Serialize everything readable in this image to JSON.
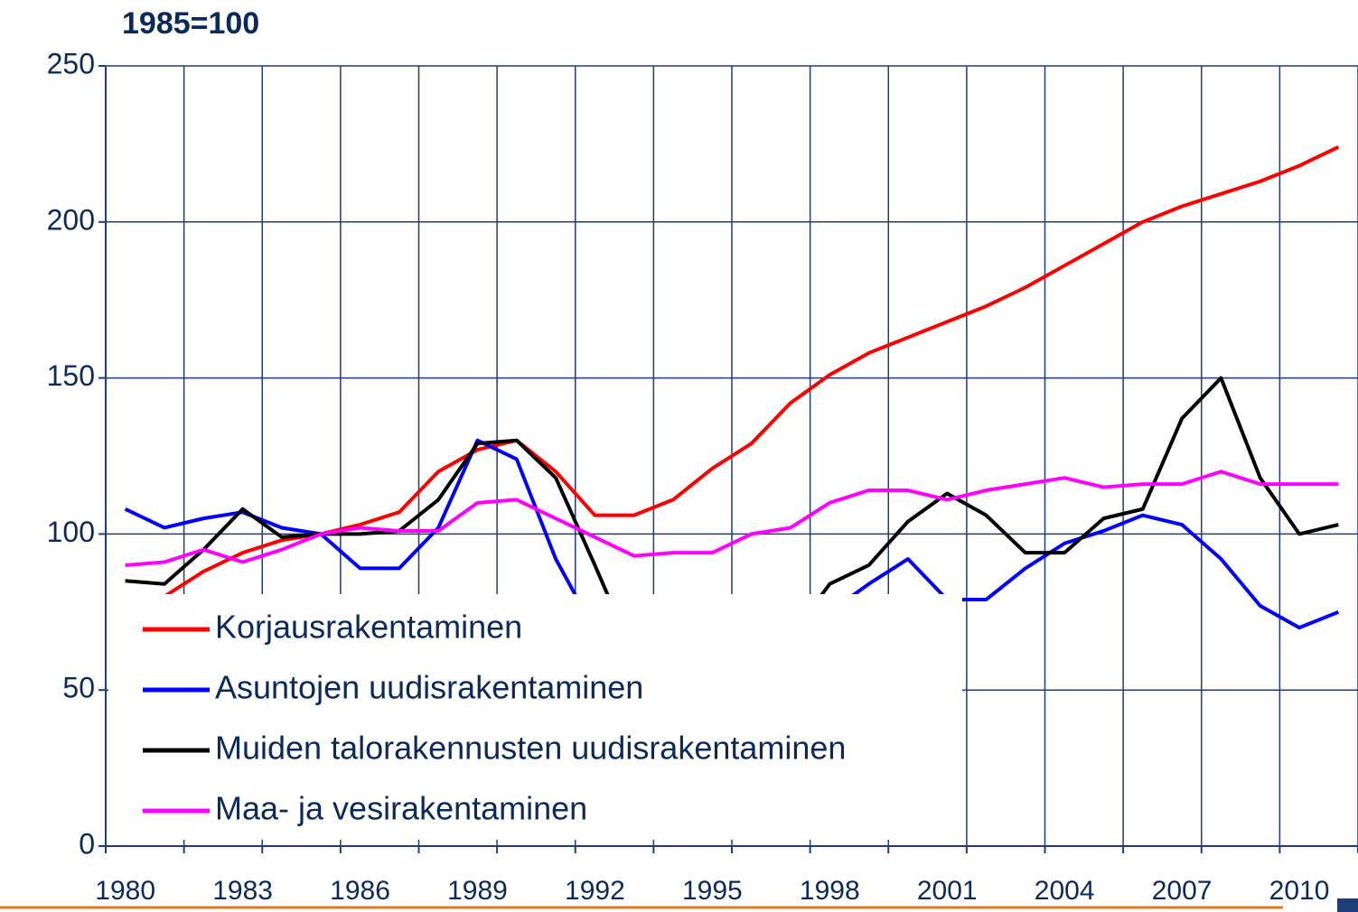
{
  "chart_data": {
    "type": "line",
    "title": "1985=100",
    "categories": [
      "1980",
      null,
      null,
      "1983",
      null,
      null,
      "1986",
      null,
      null,
      "1989",
      null,
      null,
      "1992",
      null,
      null,
      "1995",
      null,
      null,
      "1998",
      null,
      null,
      "2001",
      null,
      null,
      "2004",
      null,
      null,
      "2007",
      null,
      null,
      "2010",
      null
    ],
    "series": [
      {
        "name": "Korjausrakentaminen",
        "color": "#ff0000",
        "values": [
          73,
          80,
          88,
          94,
          98,
          100,
          103,
          107,
          120,
          127,
          130,
          120,
          106,
          106,
          111,
          121,
          129,
          142,
          151,
          158,
          163,
          168,
          173,
          179,
          186,
          193,
          200,
          205,
          209,
          213,
          218,
          224
        ]
      },
      {
        "name": "Asuntojen uudisrakentaminen",
        "color": "#0000ff",
        "values": [
          108,
          102,
          105,
          107,
          102,
          100,
          89,
          89,
          102,
          130,
          124,
          92,
          69,
          59,
          55,
          51,
          48,
          67,
          75,
          84,
          92,
          79,
          79,
          89,
          97,
          101,
          106,
          103,
          92,
          77,
          70,
          75
        ]
      },
      {
        "name": "Muiden talorakennusten uudisrakentaminen",
        "color": "#000000",
        "values": [
          85,
          84,
          95,
          108,
          99,
          100,
          100,
          101,
          111,
          129,
          130,
          118,
          90,
          61,
          52,
          55,
          64,
          67,
          84,
          90,
          104,
          113,
          106,
          94,
          94,
          105,
          108,
          137,
          150,
          118,
          100,
          103
        ]
      },
      {
        "name": "Maa- ja vesirakentaminen",
        "color": "#ff00ff",
        "values": [
          90,
          91,
          95,
          91,
          95,
          100,
          102,
          101,
          101,
          110,
          111,
          105,
          99,
          93,
          94,
          94,
          100,
          102,
          110,
          114,
          114,
          111,
          114,
          116,
          118,
          115,
          116,
          116,
          120,
          116,
          116,
          116
        ]
      }
    ],
    "ylim": [
      0,
      250
    ],
    "yticks": [
      0,
      50,
      100,
      150,
      200,
      250
    ],
    "grid": true,
    "legend": "lower left"
  }
}
